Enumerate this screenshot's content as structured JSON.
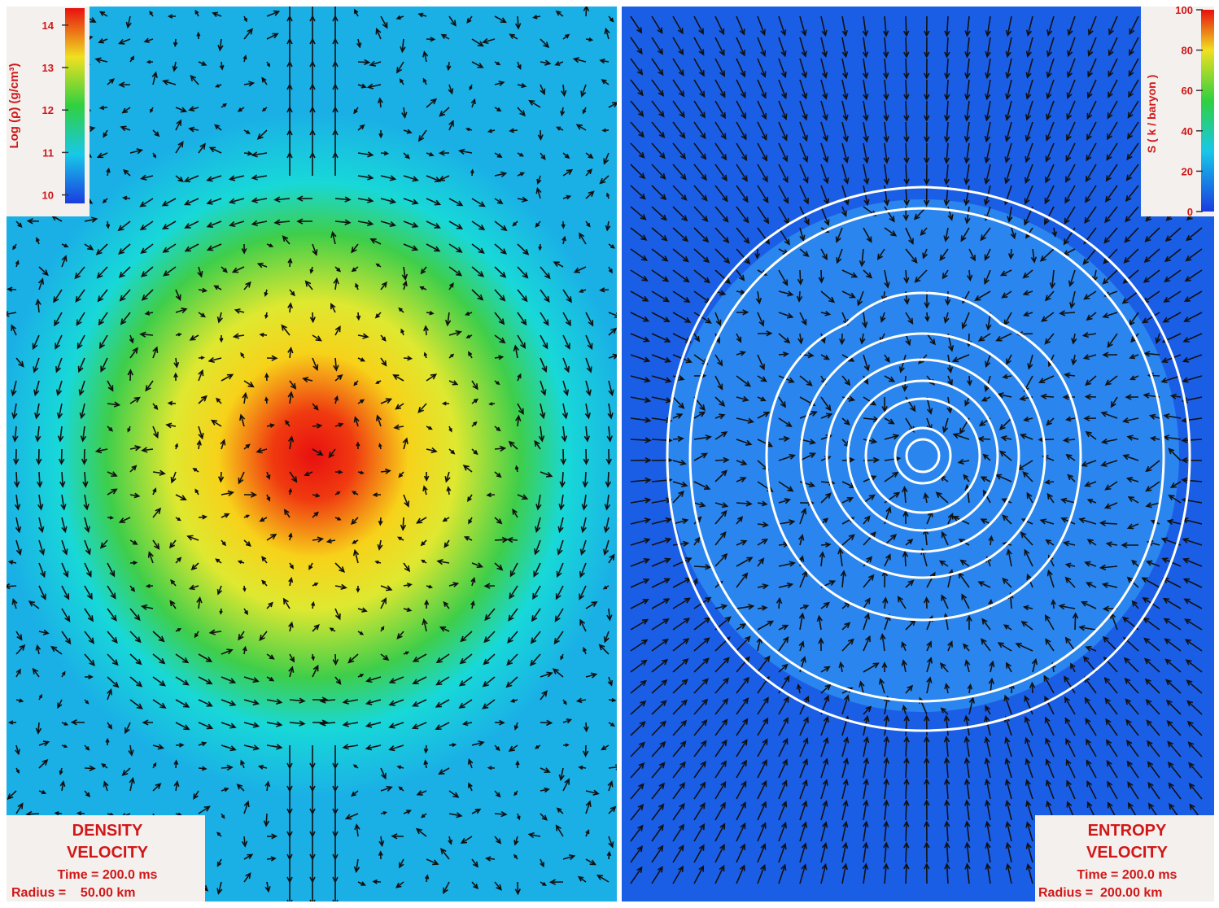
{
  "left_panel": {
    "colorbar": {
      "label": "Log (ρ) (g/cm³)",
      "ticks": [
        10,
        11,
        12,
        13,
        14
      ],
      "range": [
        9.8,
        14.4
      ]
    },
    "info": {
      "line1": "DENSITY",
      "line2": "VELOCITY",
      "time": "Time = 200.0 ms",
      "radius": "Radius =    50.00 km"
    }
  },
  "right_panel": {
    "colorbar": {
      "label": "S ( k / baryon )",
      "ticks": [
        0,
        20,
        40,
        60,
        80,
        100
      ],
      "range": [
        0,
        100
      ]
    },
    "info": {
      "line1": "ENTROPY",
      "line2": "VELOCITY",
      "time": "Time = 200.0 ms",
      "radius": "Radius =  200.00 km"
    }
  }
}
